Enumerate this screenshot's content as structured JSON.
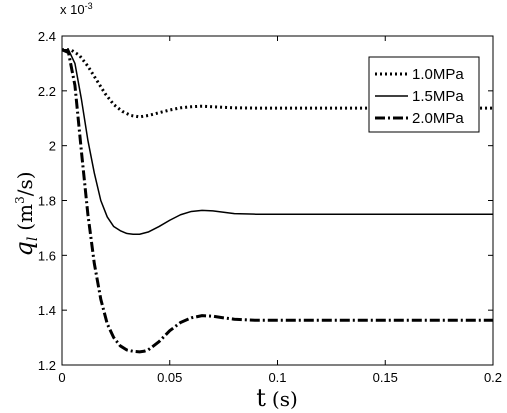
{
  "chart_data": {
    "type": "line",
    "title": "",
    "xlabel_symbol": "t",
    "xlabel_unit": "(s)",
    "ylabel_symbol": "q",
    "ylabel_sub": "l",
    "ylabel_unit": "(m",
    "ylabel_unit_sup": "3",
    "ylabel_unit_end": "/s)",
    "y_multiplier": "x 10",
    "y_multiplier_exp": "-3",
    "xlim": [
      0,
      0.2
    ],
    "ylim": [
      1.2,
      2.4
    ],
    "x_ticks": [
      0,
      0.05,
      0.1,
      0.15,
      0.2
    ],
    "x_tick_labels": [
      "0",
      "0.05",
      "0.1",
      "0.15",
      "0.2"
    ],
    "y_ticks": [
      1.2,
      1.4,
      1.6,
      1.8,
      2.0,
      2.2,
      2.4
    ],
    "y_tick_labels": [
      "1.2",
      "1.4",
      "1.6",
      "1.8",
      "2",
      "2.2",
      "2.4"
    ],
    "grid": false,
    "legend_position": "top-right",
    "series": [
      {
        "name": "1.0MPa",
        "dash": "dotted",
        "x": [
          0,
          0.004,
          0.008,
          0.012,
          0.016,
          0.02,
          0.024,
          0.028,
          0.032,
          0.036,
          0.04,
          0.045,
          0.05,
          0.055,
          0.06,
          0.065,
          0.07,
          0.075,
          0.08,
          0.09,
          0.1,
          0.12,
          0.15,
          0.2
        ],
        "y": [
          2.35,
          2.35,
          2.33,
          2.29,
          2.24,
          2.19,
          2.15,
          2.125,
          2.11,
          2.105,
          2.11,
          2.12,
          2.13,
          2.138,
          2.142,
          2.144,
          2.142,
          2.14,
          2.138,
          2.137,
          2.137,
          2.137,
          2.137,
          2.137
        ]
      },
      {
        "name": "1.5MPa",
        "dash": "solid",
        "x": [
          0,
          0.003,
          0.006,
          0.009,
          0.012,
          0.015,
          0.018,
          0.021,
          0.024,
          0.027,
          0.03,
          0.033,
          0.036,
          0.04,
          0.045,
          0.05,
          0.055,
          0.06,
          0.065,
          0.07,
          0.075,
          0.08,
          0.09,
          0.1,
          0.12,
          0.15,
          0.2
        ],
        "y": [
          2.35,
          2.35,
          2.3,
          2.17,
          2.02,
          1.9,
          1.8,
          1.74,
          1.705,
          1.69,
          1.68,
          1.677,
          1.677,
          1.685,
          1.705,
          1.728,
          1.748,
          1.76,
          1.764,
          1.762,
          1.757,
          1.752,
          1.75,
          1.75,
          1.75,
          1.75,
          1.75
        ]
      },
      {
        "name": "2.0MPa",
        "dash": "dashdot",
        "x": [
          0,
          0.003,
          0.006,
          0.009,
          0.012,
          0.015,
          0.018,
          0.021,
          0.024,
          0.027,
          0.03,
          0.033,
          0.036,
          0.038,
          0.04,
          0.045,
          0.05,
          0.055,
          0.06,
          0.065,
          0.07,
          0.075,
          0.08,
          0.09,
          0.1,
          0.12,
          0.15,
          0.2
        ],
        "y": [
          2.35,
          2.34,
          2.22,
          1.98,
          1.75,
          1.57,
          1.44,
          1.35,
          1.3,
          1.27,
          1.255,
          1.25,
          1.248,
          1.25,
          1.255,
          1.285,
          1.325,
          1.355,
          1.372,
          1.38,
          1.378,
          1.372,
          1.367,
          1.363,
          1.363,
          1.363,
          1.363,
          1.363
        ]
      }
    ]
  }
}
